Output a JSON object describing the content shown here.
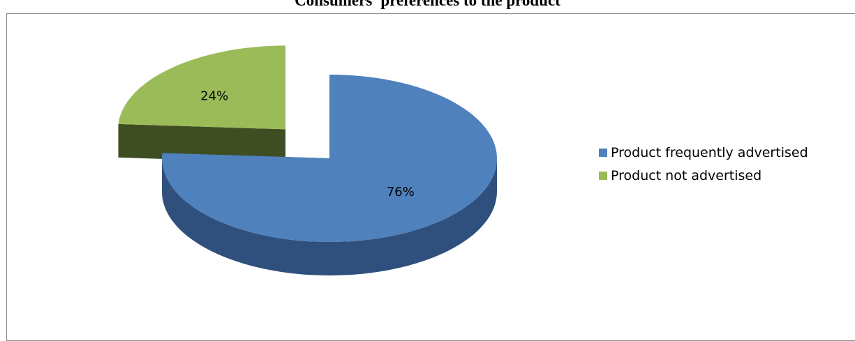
{
  "chart_data": {
    "type": "pie",
    "title": "Consumers' preferences to the product",
    "categories": [
      "Product frequently advertised",
      "Product not advertised"
    ],
    "values": [
      76,
      24
    ],
    "value_labels": [
      "76%",
      "24%"
    ],
    "colors": [
      "#4f81bd",
      "#9bbb59"
    ],
    "side_colors": [
      "#2f4f7d",
      "#3e4e22"
    ],
    "exploded": [
      false,
      true
    ],
    "three_d": true,
    "legend_position": "right"
  }
}
